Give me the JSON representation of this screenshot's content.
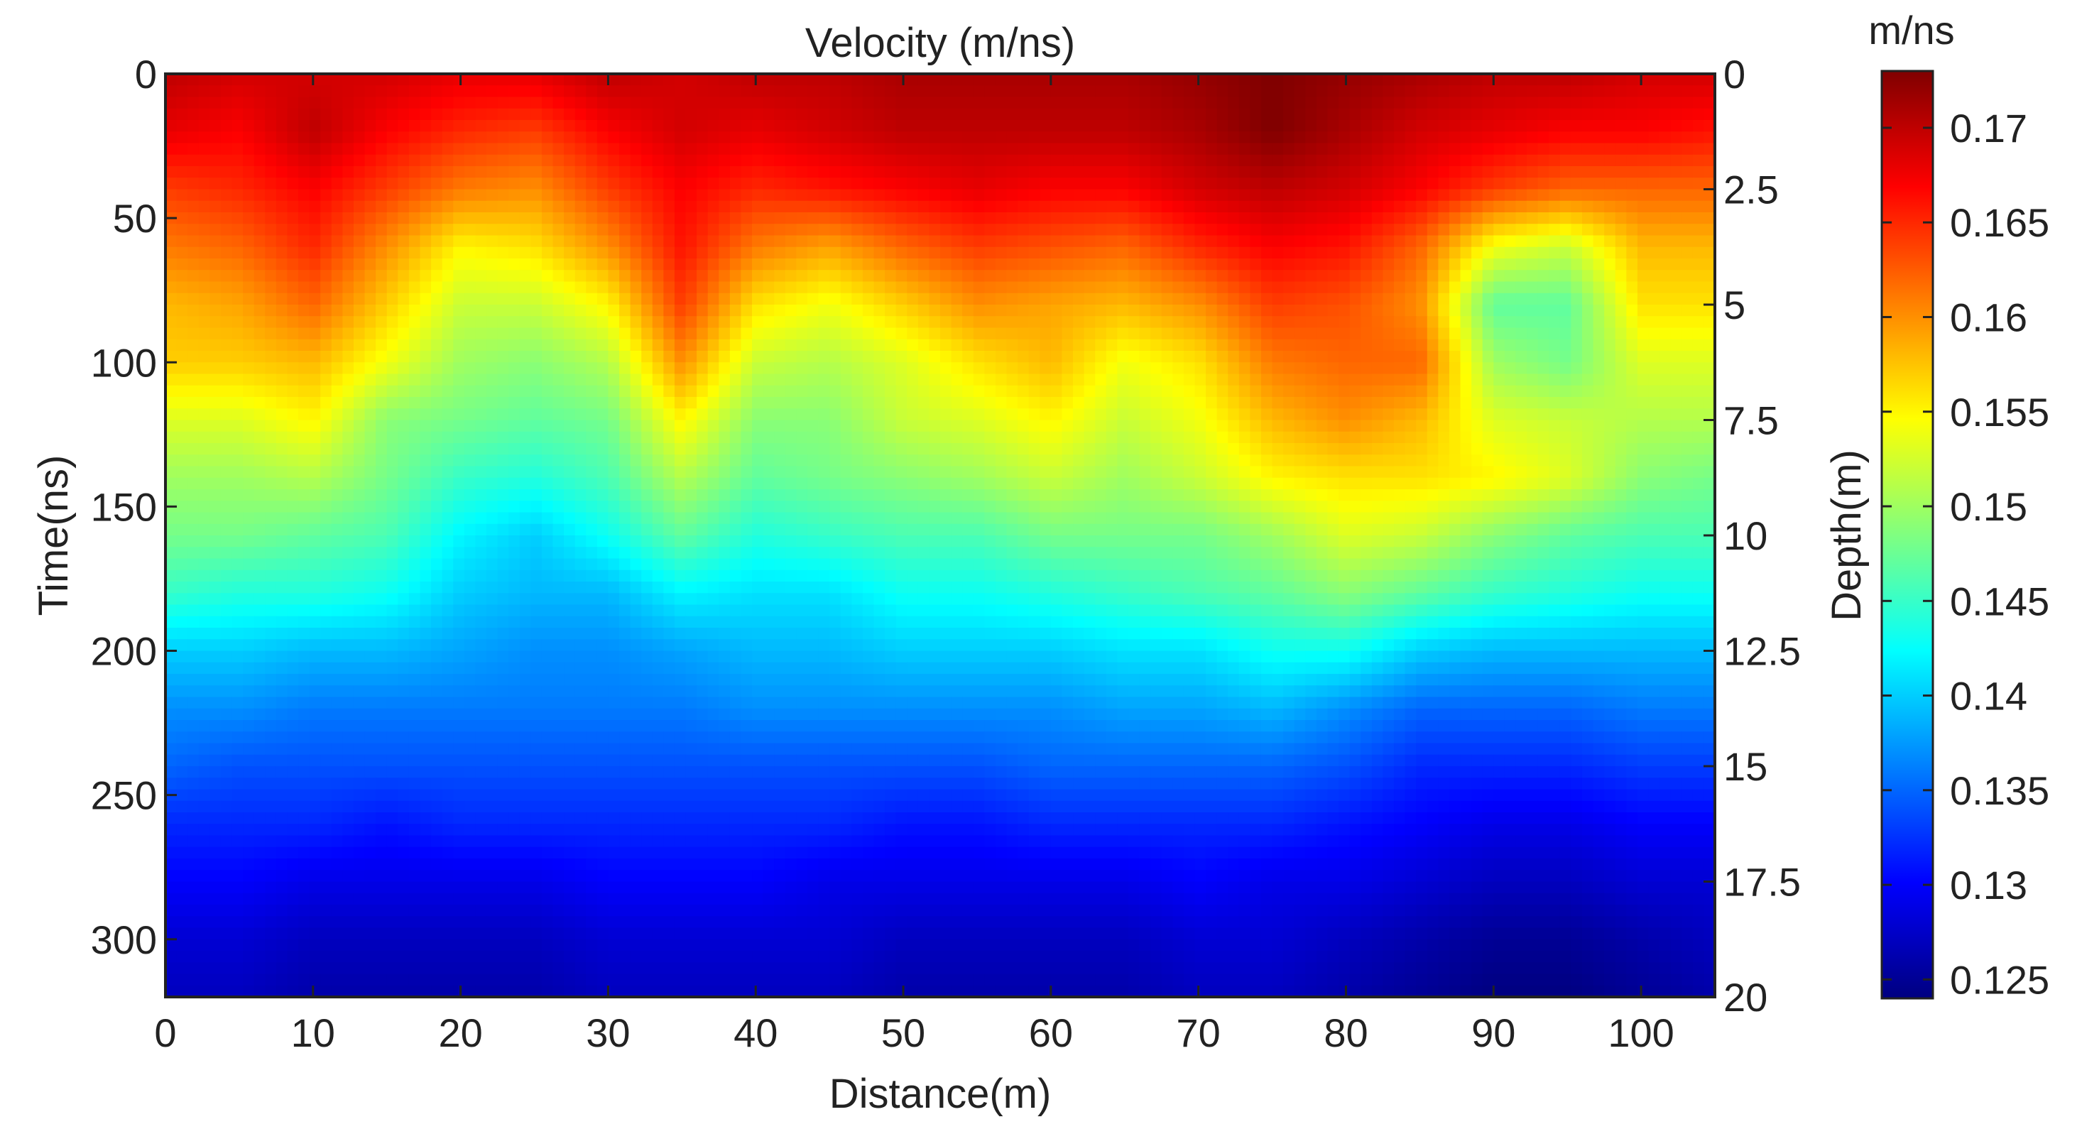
{
  "chart_data": {
    "type": "heatmap",
    "title": "Velocity (m/ns)",
    "xlabel": "Distance(m)",
    "ylabel": "Time(ns)",
    "y2label": "Depth(m)",
    "xlim": [
      0,
      105
    ],
    "ylim": [
      0,
      320
    ],
    "y2lim": [
      0,
      20
    ],
    "xticks": [
      0,
      10,
      20,
      30,
      40,
      50,
      60,
      70,
      80,
      90,
      100
    ],
    "yticks": [
      0,
      50,
      100,
      150,
      200,
      250,
      300
    ],
    "y2ticks": [
      "0",
      "2.5",
      "5",
      "7.5",
      "10",
      "12.5",
      "15",
      "17.5",
      "20"
    ],
    "colorbar": {
      "label": "m/ns",
      "range": [
        0.124,
        0.173
      ],
      "ticks": [
        "0.125",
        "0.13",
        "0.135",
        "0.14",
        "0.145",
        "0.15",
        "0.155",
        "0.16",
        "0.165",
        "0.17"
      ],
      "colormap": "jet"
    },
    "grid": {
      "x": [
        0,
        5,
        10,
        15,
        20,
        25,
        30,
        35,
        40,
        45,
        50,
        55,
        60,
        65,
        70,
        75,
        80,
        85,
        90,
        95,
        100,
        105
      ],
      "y": [
        0,
        20,
        40,
        60,
        80,
        100,
        120,
        140,
        160,
        180,
        200,
        220,
        240,
        260,
        280,
        300,
        320
      ],
      "z": [
        [
          0.17,
          0.169,
          0.169,
          0.169,
          0.168,
          0.168,
          0.17,
          0.169,
          0.17,
          0.17,
          0.171,
          0.171,
          0.171,
          0.171,
          0.172,
          0.173,
          0.172,
          0.171,
          0.17,
          0.17,
          0.169,
          0.169
        ],
        [
          0.168,
          0.167,
          0.17,
          0.167,
          0.165,
          0.164,
          0.167,
          0.169,
          0.168,
          0.169,
          0.17,
          0.17,
          0.17,
          0.17,
          0.171,
          0.173,
          0.171,
          0.169,
          0.168,
          0.167,
          0.167,
          0.166
        ],
        [
          0.164,
          0.165,
          0.167,
          0.164,
          0.161,
          0.16,
          0.164,
          0.167,
          0.165,
          0.166,
          0.167,
          0.168,
          0.167,
          0.167,
          0.169,
          0.17,
          0.169,
          0.167,
          0.164,
          0.162,
          0.162,
          0.162
        ],
        [
          0.161,
          0.162,
          0.165,
          0.16,
          0.155,
          0.156,
          0.16,
          0.166,
          0.161,
          0.159,
          0.162,
          0.164,
          0.163,
          0.162,
          0.165,
          0.167,
          0.166,
          0.162,
          0.154,
          0.152,
          0.158,
          0.158
        ],
        [
          0.158,
          0.159,
          0.162,
          0.157,
          0.152,
          0.152,
          0.155,
          0.164,
          0.156,
          0.154,
          0.157,
          0.16,
          0.159,
          0.158,
          0.16,
          0.164,
          0.163,
          0.16,
          0.147,
          0.147,
          0.156,
          0.156
        ],
        [
          0.157,
          0.157,
          0.158,
          0.154,
          0.15,
          0.149,
          0.151,
          0.16,
          0.152,
          0.151,
          0.153,
          0.156,
          0.158,
          0.154,
          0.156,
          0.161,
          0.162,
          0.162,
          0.15,
          0.148,
          0.153,
          0.153
        ],
        [
          0.153,
          0.153,
          0.155,
          0.149,
          0.148,
          0.147,
          0.148,
          0.155,
          0.149,
          0.149,
          0.152,
          0.153,
          0.155,
          0.152,
          0.154,
          0.158,
          0.16,
          0.158,
          0.153,
          0.152,
          0.151,
          0.151
        ],
        [
          0.15,
          0.15,
          0.151,
          0.148,
          0.145,
          0.144,
          0.146,
          0.151,
          0.147,
          0.148,
          0.149,
          0.15,
          0.152,
          0.15,
          0.152,
          0.155,
          0.156,
          0.156,
          0.155,
          0.153,
          0.149,
          0.148
        ],
        [
          0.148,
          0.148,
          0.147,
          0.146,
          0.142,
          0.14,
          0.143,
          0.147,
          0.144,
          0.145,
          0.146,
          0.146,
          0.148,
          0.148,
          0.148,
          0.15,
          0.153,
          0.152,
          0.149,
          0.147,
          0.146,
          0.146
        ],
        [
          0.145,
          0.144,
          0.144,
          0.143,
          0.14,
          0.139,
          0.139,
          0.142,
          0.141,
          0.141,
          0.143,
          0.143,
          0.144,
          0.145,
          0.146,
          0.147,
          0.149,
          0.147,
          0.145,
          0.144,
          0.143,
          0.143
        ],
        [
          0.14,
          0.14,
          0.139,
          0.139,
          0.138,
          0.137,
          0.137,
          0.138,
          0.139,
          0.139,
          0.14,
          0.14,
          0.14,
          0.141,
          0.141,
          0.143,
          0.143,
          0.14,
          0.139,
          0.139,
          0.139,
          0.139
        ],
        [
          0.137,
          0.137,
          0.136,
          0.136,
          0.136,
          0.136,
          0.136,
          0.136,
          0.137,
          0.137,
          0.137,
          0.137,
          0.137,
          0.138,
          0.138,
          0.139,
          0.137,
          0.135,
          0.135,
          0.135,
          0.136,
          0.136
        ],
        [
          0.135,
          0.134,
          0.134,
          0.134,
          0.134,
          0.134,
          0.134,
          0.134,
          0.134,
          0.134,
          0.134,
          0.134,
          0.135,
          0.135,
          0.135,
          0.135,
          0.134,
          0.132,
          0.132,
          0.132,
          0.133,
          0.133
        ],
        [
          0.132,
          0.132,
          0.132,
          0.131,
          0.132,
          0.132,
          0.132,
          0.132,
          0.132,
          0.132,
          0.131,
          0.131,
          0.132,
          0.132,
          0.132,
          0.132,
          0.131,
          0.13,
          0.129,
          0.129,
          0.13,
          0.13
        ],
        [
          0.13,
          0.13,
          0.129,
          0.129,
          0.129,
          0.129,
          0.13,
          0.13,
          0.13,
          0.129,
          0.129,
          0.129,
          0.129,
          0.129,
          0.13,
          0.129,
          0.129,
          0.128,
          0.127,
          0.127,
          0.128,
          0.128
        ],
        [
          0.128,
          0.128,
          0.127,
          0.127,
          0.127,
          0.127,
          0.128,
          0.128,
          0.128,
          0.128,
          0.127,
          0.127,
          0.127,
          0.127,
          0.128,
          0.128,
          0.127,
          0.126,
          0.125,
          0.125,
          0.126,
          0.127
        ],
        [
          0.127,
          0.127,
          0.126,
          0.126,
          0.126,
          0.126,
          0.127,
          0.127,
          0.127,
          0.127,
          0.126,
          0.126,
          0.126,
          0.126,
          0.127,
          0.127,
          0.126,
          0.125,
          0.124,
          0.124,
          0.125,
          0.126
        ]
      ]
    }
  }
}
